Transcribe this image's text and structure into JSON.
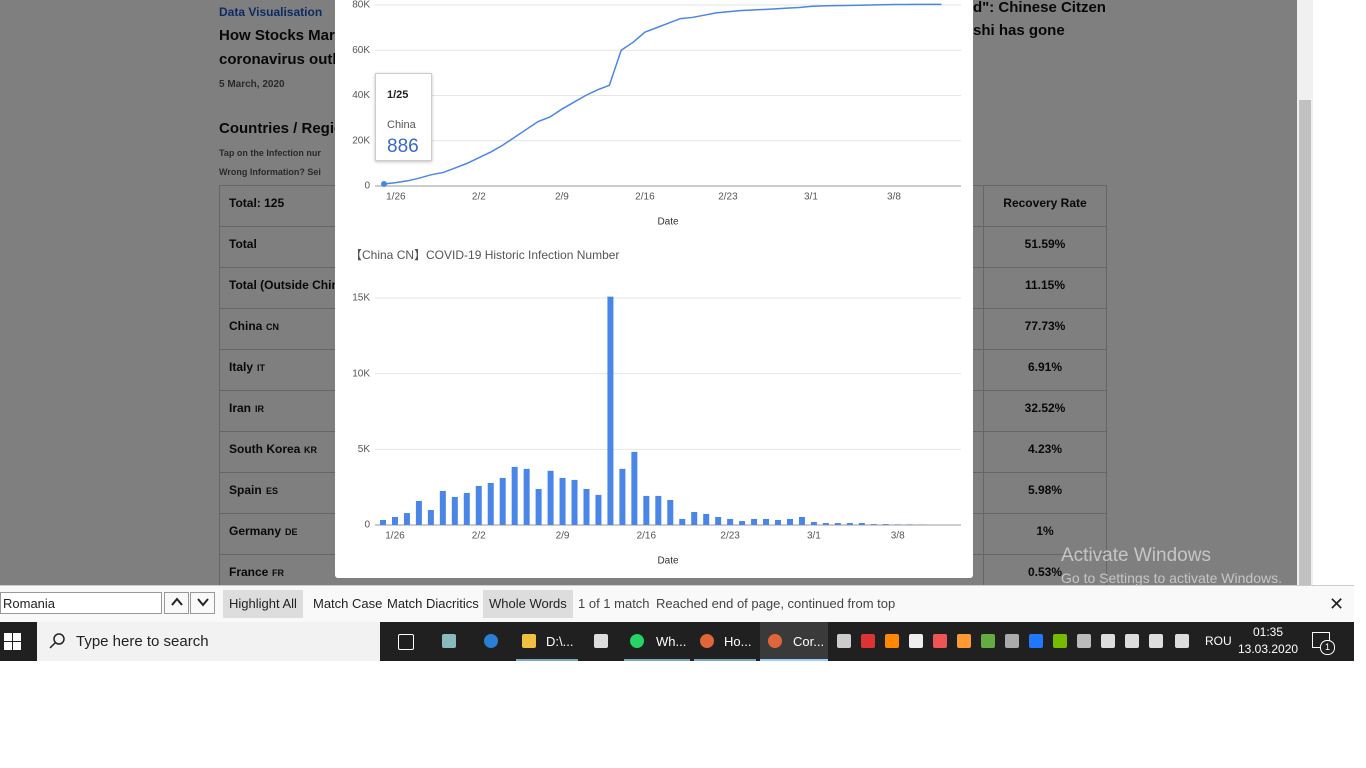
{
  "article": {
    "category": "Data Visualisation",
    "headline_1": "How Stocks Mark",
    "headline_2": "coronavirus outb",
    "date": "5 March, 2020",
    "section": "Countries / Regic",
    "hint_1": "Tap on the Infection nur",
    "hint_2": "Wrong Information? Sei",
    "right_1": "d\": Chinese Citzen",
    "right_2": "shi has gone"
  },
  "table": {
    "header_left": "Total: 125",
    "header_right": "Recovery Rate",
    "rows": [
      {
        "name": "Total",
        "rate": "51.59%"
      },
      {
        "name": "Total (Outside Chin",
        "rate": "11.15%"
      },
      {
        "name": "China",
        "code": "CN",
        "rate": "77.73%"
      },
      {
        "name": "Italy",
        "code": "IT",
        "rate": "6.91%"
      },
      {
        "name": "Iran",
        "code": "IR",
        "rate": "32.52%"
      },
      {
        "name": "South Korea",
        "code": "KR",
        "rate": "4.23%"
      },
      {
        "name": "Spain",
        "code": "ES",
        "rate": "5.98%"
      },
      {
        "name": "Germany",
        "code": "DE",
        "rate": "1%"
      },
      {
        "name": "France",
        "code": "FR",
        "rate": "0.53%"
      }
    ]
  },
  "chart_data": [
    {
      "type": "line",
      "x_label": "Date",
      "categories": [
        "1/25",
        "1/26",
        "1/27",
        "1/28",
        "1/29",
        "1/30",
        "1/31",
        "2/1",
        "2/2",
        "2/3",
        "2/4",
        "2/5",
        "2/6",
        "2/7",
        "2/8",
        "2/9",
        "2/10",
        "2/11",
        "2/12",
        "2/13",
        "2/14",
        "2/15",
        "2/16",
        "2/17",
        "2/18",
        "2/19",
        "2/20",
        "2/21",
        "2/22",
        "2/23",
        "2/24",
        "2/25",
        "2/26",
        "2/27",
        "2/28",
        "2/29",
        "3/1",
        "3/2",
        "3/3",
        "3/4",
        "3/5",
        "3/6",
        "3/7",
        "3/8",
        "3/9",
        "3/10",
        "3/11",
        "3/12"
      ],
      "series": [
        {
          "name": "China",
          "color": "#4a86e8",
          "values": [
            886,
            1500,
            2300,
            3500,
            5000,
            6000,
            8000,
            10000,
            12500,
            15000,
            18000,
            21500,
            25000,
            28500,
            30500,
            34000,
            37000,
            40000,
            42500,
            44500,
            60000,
            63500,
            68000,
            70000,
            72000,
            74000,
            74500,
            75500,
            76500,
            77000,
            77500,
            77800,
            78000,
            78300,
            78600,
            78900,
            79400,
            79600,
            79700,
            79800,
            79900,
            80000,
            80100,
            80200,
            80200,
            80300,
            80300,
            80300
          ]
        }
      ],
      "xticks": [
        "1/26",
        "2/2",
        "2/9",
        "2/16",
        "2/23",
        "3/1",
        "3/8"
      ],
      "ylim": [
        0,
        80000
      ],
      "yticks": [
        0,
        {
          "value": 20000,
          "label": "20K"
        },
        {
          "value": 40000,
          "label": "40K"
        },
        {
          "value": 60000,
          "label": "60K"
        },
        {
          "value": 80000,
          "label": "80K"
        }
      ],
      "grid": true
    },
    {
      "type": "bar",
      "title": "【China CN】COVID-19 Historic Infection Number",
      "x_label": "Date",
      "color": "#4a86e8",
      "categories": [
        "1/25",
        "1/26",
        "1/27",
        "1/28",
        "1/29",
        "1/30",
        "1/31",
        "2/1",
        "2/2",
        "2/3",
        "2/4",
        "2/5",
        "2/6",
        "2/7",
        "2/8",
        "2/9",
        "2/10",
        "2/11",
        "2/12",
        "2/13",
        "2/14",
        "2/15",
        "2/16",
        "2/17",
        "2/18",
        "2/19",
        "2/20",
        "2/21",
        "2/22",
        "2/23",
        "2/24",
        "2/25",
        "2/26",
        "2/27",
        "2/28",
        "2/29",
        "3/1",
        "3/2",
        "3/3",
        "3/4",
        "3/5",
        "3/6",
        "3/7",
        "3/8",
        "3/9",
        "3/10"
      ],
      "values": [
        330,
        530,
        790,
        1590,
        990,
        2250,
        1850,
        2120,
        2580,
        2780,
        3110,
        3840,
        3710,
        2380,
        3580,
        3110,
        2980,
        2380,
        1990,
        15090,
        3710,
        4830,
        1920,
        1920,
        1650,
        400,
        860,
        730,
        530,
        400,
        260,
        400,
        400,
        330,
        400,
        530,
        200,
        130,
        130,
        130,
        130,
        60,
        60,
        40,
        40,
        20
      ],
      "xticks": [
        "1/26",
        "2/2",
        "2/9",
        "2/16",
        "2/23",
        "3/1",
        "3/8"
      ],
      "ylim": [
        0,
        15000
      ],
      "yticks": [
        0,
        {
          "value": 5000,
          "label": "5K"
        },
        {
          "value": 10000,
          "label": "10K"
        },
        {
          "value": 15000,
          "label": "15K"
        }
      ],
      "grid": true
    }
  ],
  "find_bar": {
    "query": "Romania",
    "highlight_all": "Highlight All",
    "match_case": "Match Case",
    "match_diacritics": "Match Diacritics",
    "whole_words": "Whole Words",
    "count": "1 of 1 match",
    "status": "Reached end of page, continued from top"
  },
  "taskbar": {
    "search": "Type here to search",
    "apps": [
      "D:\\...",
      "Wh...",
      "Ho...",
      "Cor..."
    ],
    "language": "ROU",
    "time": "01:35",
    "date": "13.03.2020",
    "notifications": "1"
  },
  "watermark": {
    "title": "Activate Windows",
    "subtitle": "Go to Settings to activate Windows."
  }
}
